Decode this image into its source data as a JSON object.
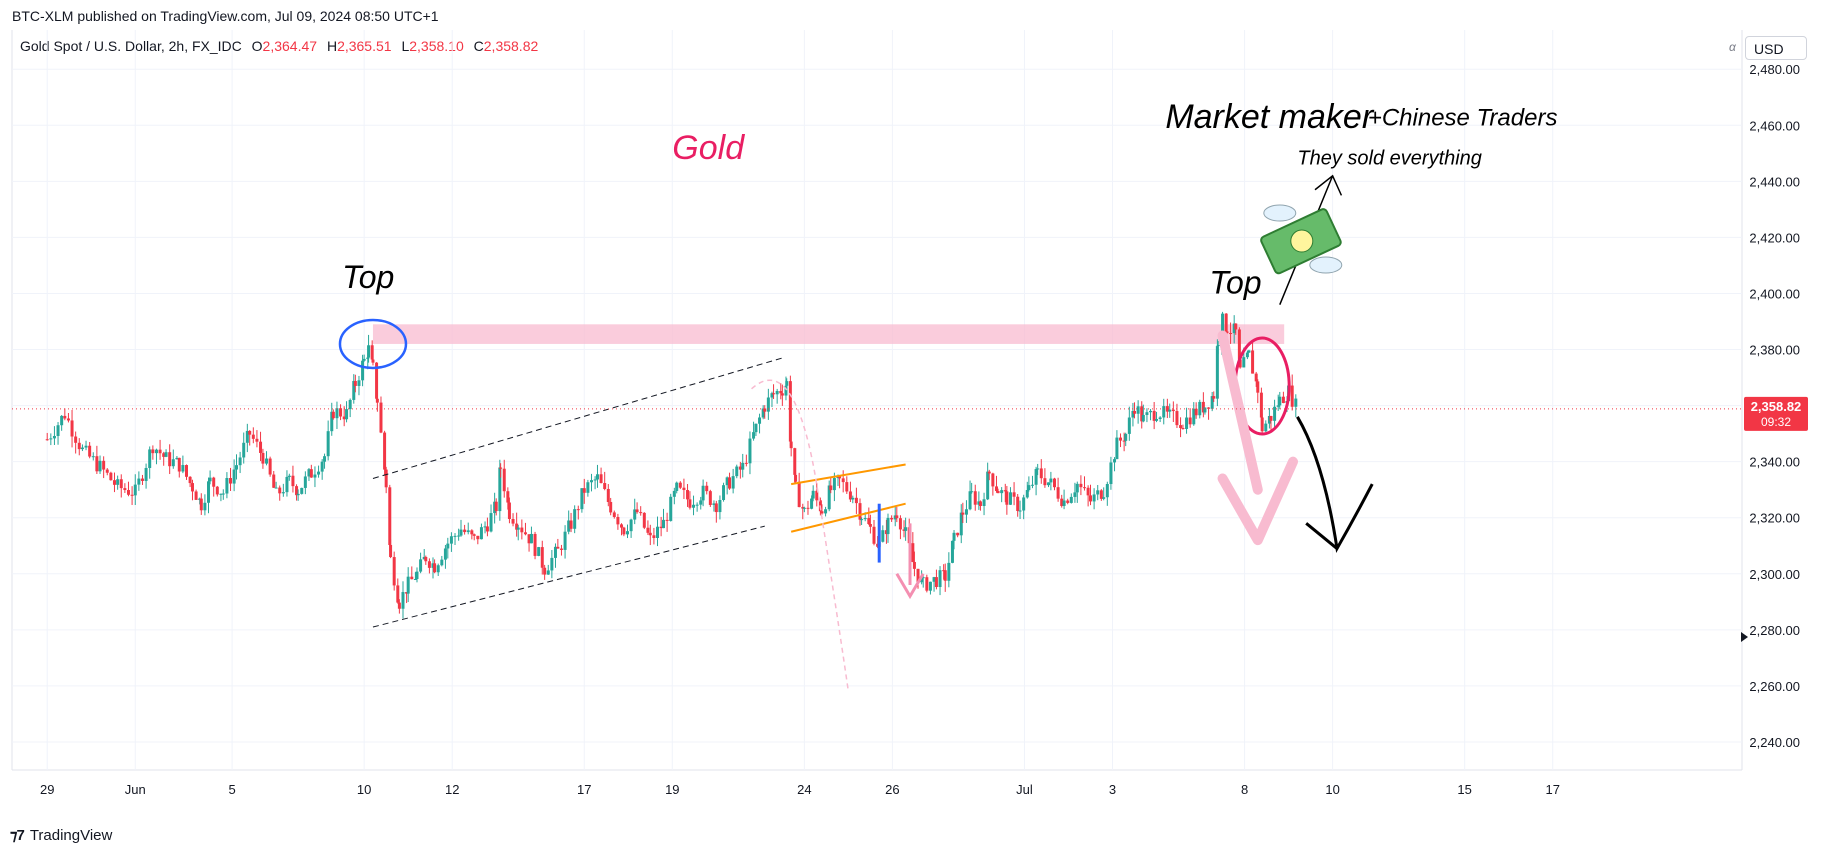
{
  "header": {
    "published": "BTC-XLM published on TradingView.com, Jul 09, 2024 08:50 UTC+1",
    "symbol": "Gold Spot / U.S. Dollar, 2h, FX_IDC",
    "ohlc": {
      "o_label": "O",
      "o": "2,364.47",
      "h_label": "H",
      "h": "2,365.51",
      "l_label": "L",
      "l": "2,358.10",
      "c_label": "C",
      "c": "2,358.82"
    },
    "currency": "USD",
    "log_toggle": "α"
  },
  "footer": {
    "brand": "TradingView",
    "logo": "tv-logo-icon"
  },
  "colors": {
    "up": "#26a69a",
    "down": "#f23645",
    "grid": "#f0f3fa",
    "price_tag": "#f23645"
  },
  "chart_data": {
    "type": "candlestick",
    "instrument": "Gold Spot / U.S. Dollar",
    "interval": "2h",
    "y_axis": {
      "ticks": [
        2240,
        2260,
        2280,
        2300,
        2320,
        2340,
        2360,
        2380,
        2400,
        2420,
        2440,
        2460,
        2480
      ],
      "tick_labels": [
        "2,240.00",
        "2,260.00",
        "2,280.00",
        "2,300.00",
        "2,320.00",
        "2,340.00",
        "2,360.00",
        "2,380.00",
        "2,400.00",
        "2,420.00",
        "2,440.00",
        "2,460.00",
        "2,480.00"
      ],
      "range": [
        2230,
        2494
      ]
    },
    "x_axis": {
      "ticks": [
        "29",
        "Jun",
        "5",
        "10",
        "12",
        "17",
        "19",
        "24",
        "26",
        "Jul",
        "3",
        "8",
        "10",
        "15",
        "17"
      ],
      "tick_values": [
        0,
        20,
        42,
        72,
        92,
        122,
        142,
        172,
        192,
        222,
        242,
        272,
        292,
        322,
        342
      ],
      "range": [
        -8,
        385
      ]
    },
    "last_price": {
      "value": 2358.82,
      "label": "2,358.82",
      "countdown": "09:32"
    },
    "series_close": [
      [
        0,
        2348
      ],
      [
        4,
        2357
      ],
      [
        8,
        2344
      ],
      [
        12,
        2338
      ],
      [
        16,
        2331
      ],
      [
        20,
        2329
      ],
      [
        24,
        2346
      ],
      [
        27,
        2341
      ],
      [
        30,
        2339
      ],
      [
        33,
        2331
      ],
      [
        35,
        2325
      ],
      [
        37,
        2333
      ],
      [
        40,
        2329
      ],
      [
        43,
        2339
      ],
      [
        46,
        2350
      ],
      [
        49,
        2342
      ],
      [
        52,
        2328
      ],
      [
        55,
        2333
      ],
      [
        57,
        2330
      ],
      [
        60,
        2336
      ],
      [
        63,
        2342
      ],
      [
        65,
        2358
      ],
      [
        68,
        2357
      ],
      [
        70,
        2368
      ],
      [
        72,
        2376
      ],
      [
        73,
        2380
      ],
      [
        74,
        2373
      ],
      [
        75,
        2362
      ],
      [
        77,
        2332
      ],
      [
        78,
        2305
      ],
      [
        80,
        2290
      ],
      [
        82,
        2296
      ],
      [
        84,
        2300
      ],
      [
        86,
        2306
      ],
      [
        88,
        2303
      ],
      [
        91,
        2311
      ],
      [
        94,
        2316
      ],
      [
        97,
        2312
      ],
      [
        100,
        2318
      ],
      [
        102,
        2324
      ],
      [
        103,
        2338
      ],
      [
        105,
        2322
      ],
      [
        107,
        2318
      ],
      [
        110,
        2312
      ],
      [
        113,
        2302
      ],
      [
        116,
        2308
      ],
      [
        119,
        2318
      ],
      [
        122,
        2330
      ],
      [
        125,
        2334
      ],
      [
        128,
        2324
      ],
      [
        131,
        2316
      ],
      [
        134,
        2322
      ],
      [
        137,
        2312
      ],
      [
        140,
        2318
      ],
      [
        143,
        2330
      ],
      [
        146,
        2326
      ],
      [
        149,
        2329
      ],
      [
        152,
        2325
      ],
      [
        155,
        2333
      ],
      [
        158,
        2338
      ],
      [
        161,
        2352
      ],
      [
        163,
        2360
      ],
      [
        165,
        2364
      ],
      [
        167,
        2366
      ],
      [
        168,
        2368
      ],
      [
        169,
        2345
      ],
      [
        170,
        2330
      ],
      [
        172,
        2322
      ],
      [
        174,
        2328
      ],
      [
        176,
        2323
      ],
      [
        178,
        2330
      ],
      [
        180,
        2333
      ],
      [
        183,
        2328
      ],
      [
        185,
        2321
      ],
      [
        187,
        2316
      ],
      [
        189,
        2310
      ],
      [
        191,
        2318
      ],
      [
        193,
        2322
      ],
      [
        195,
        2314
      ],
      [
        197,
        2302
      ],
      [
        199,
        2296
      ],
      [
        202,
        2298
      ],
      [
        204,
        2299
      ],
      [
        206,
        2312
      ],
      [
        208,
        2322
      ],
      [
        210,
        2328
      ],
      [
        212,
        2325
      ],
      [
        214,
        2336
      ],
      [
        216,
        2330
      ],
      [
        218,
        2327
      ],
      [
        221,
        2324
      ],
      [
        223,
        2330
      ],
      [
        225,
        2336
      ],
      [
        228,
        2332
      ],
      [
        231,
        2326
      ],
      [
        234,
        2332
      ],
      [
        237,
        2326
      ],
      [
        240,
        2330
      ],
      [
        243,
        2346
      ],
      [
        245,
        2350
      ],
      [
        247,
        2360
      ],
      [
        249,
        2355
      ],
      [
        252,
        2358
      ],
      [
        255,
        2356
      ],
      [
        258,
        2354
      ],
      [
        261,
        2358
      ],
      [
        263,
        2360
      ],
      [
        265,
        2364
      ],
      [
        266,
        2384
      ],
      [
        267,
        2390
      ],
      [
        268,
        2388
      ],
      [
        270,
        2386
      ],
      [
        271,
        2372
      ],
      [
        273,
        2378
      ],
      [
        275,
        2366
      ],
      [
        276,
        2352
      ],
      [
        278,
        2356
      ],
      [
        280,
        2362
      ],
      [
        282,
        2365
      ],
      [
        284,
        2358.82
      ]
    ]
  },
  "annotations": {
    "gold_label": "Gold",
    "top_left": "Top",
    "top_right": "Top",
    "market_maker": "Market maker",
    "chinese_traders": "+Chinese Traders",
    "sold_everything": "They sold everything",
    "money_icon": "flying-money-icon",
    "resistance_zone": [
      2382,
      2389
    ]
  }
}
